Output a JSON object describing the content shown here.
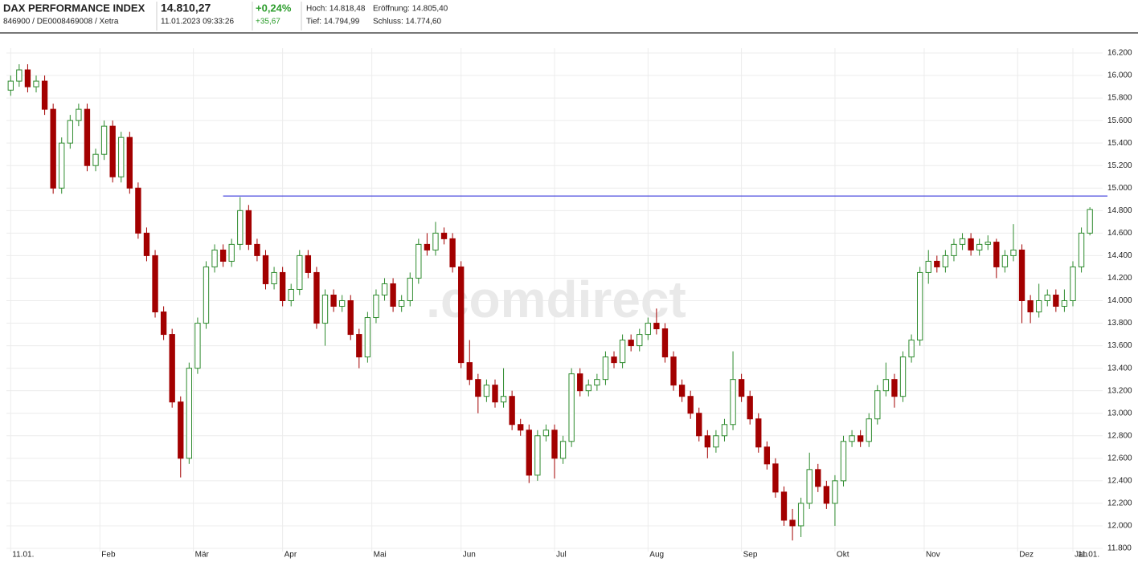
{
  "header": {
    "title": "DAX PERFORMANCE INDEX",
    "ids": "846900 / DE0008469008 / Xetra",
    "price": "14.810,27",
    "timestamp": "11.01.2023 09:33:26",
    "change_pct": "+0,24%",
    "change_abs": "+35,67",
    "high": "Hoch: 14.818,48",
    "open": "Eröffnung: 14.805,40",
    "low": "Tief: 14.794,99",
    "close": "Schluss: 14.774,60"
  },
  "chart_data": {
    "type": "candlestick",
    "watermark": ".comdirect",
    "up_color": "#2e8b2e",
    "down_color": "#a30000",
    "grid": true,
    "open": [
      15870,
      15950,
      16050,
      15900,
      15950,
      15700,
      15000,
      15400,
      15600,
      15700,
      15200,
      15300,
      15550,
      15100,
      15450,
      15000,
      14600,
      14400,
      13900,
      13700,
      13100,
      12600,
      13400,
      13800,
      14300,
      14450,
      14350,
      14500,
      14800,
      14500,
      14400,
      14150,
      14250,
      14000,
      14100,
      14400,
      14250,
      13800,
      14050,
      13950,
      14000,
      13700,
      13500,
      13850,
      14050,
      14150,
      13950,
      14000,
      14200,
      14500,
      14450,
      14600,
      14550,
      14300,
      13450,
      13300,
      13150,
      13250,
      13100,
      13150,
      12900,
      12850,
      12450,
      12800,
      12850,
      12600,
      12750,
      13350,
      13200,
      13250,
      13300,
      13500,
      13450,
      13650,
      13600,
      13700,
      13800,
      13750,
      13500,
      13250,
      13150,
      13000,
      12800,
      12700,
      12800,
      12900,
      13300,
      13150,
      12950,
      12700,
      12550,
      12300,
      12050,
      12000,
      12200,
      12500,
      12350,
      12200,
      12400,
      12750,
      12800,
      12750,
      12950,
      13200,
      13300,
      13150,
      13500,
      13650,
      14250,
      14350,
      14300,
      14400,
      14500,
      14550,
      14450,
      14500,
      14520,
      14300,
      14400,
      14450,
      14000,
      13900,
      14000,
      14050,
      13950,
      14000,
      14300,
      14600
    ],
    "high": [
      16000,
      16100,
      16100,
      16000,
      16000,
      15750,
      15450,
      15650,
      15750,
      15750,
      15350,
      15600,
      15600,
      15500,
      15500,
      15050,
      14650,
      14450,
      13950,
      13750,
      13150,
      13450,
      13850,
      14350,
      14500,
      14500,
      14550,
      14920,
      14850,
      14550,
      14450,
      14300,
      14300,
      14150,
      14450,
      14450,
      14300,
      14100,
      14100,
      14050,
      14050,
      13750,
      13900,
      14100,
      14200,
      14200,
      14050,
      14250,
      14550,
      14600,
      14700,
      14650,
      14600,
      14350,
      13650,
      13350,
      13300,
      13300,
      13400,
      13200,
      12950,
      12900,
      12850,
      12900,
      12900,
      12800,
      13400,
      13400,
      13300,
      13350,
      13550,
      13550,
      13700,
      13700,
      13750,
      13850,
      13930,
      13800,
      13550,
      13300,
      13200,
      13050,
      12850,
      12850,
      12950,
      13550,
      13350,
      13200,
      13000,
      12750,
      12600,
      12350,
      12150,
      12250,
      12650,
      12550,
      12400,
      12450,
      12800,
      12850,
      12850,
      13000,
      13250,
      13450,
      13350,
      13550,
      13700,
      14300,
      14450,
      14400,
      14450,
      14550,
      14600,
      14600,
      14550,
      14580,
      14550,
      14450,
      14680,
      14500,
      14050,
      14150,
      14100,
      14100,
      14100,
      14350,
      14650,
      14830
    ],
    "low": [
      15820,
      15900,
      15850,
      15850,
      15650,
      14950,
      14950,
      15350,
      15550,
      15150,
      15150,
      15250,
      15050,
      15050,
      14950,
      14550,
      14350,
      13850,
      13650,
      13050,
      12430,
      12550,
      13350,
      13750,
      14250,
      14300,
      14300,
      14450,
      14450,
      14350,
      14100,
      14100,
      13950,
      13950,
      14050,
      14200,
      13750,
      13600,
      13900,
      13900,
      13650,
      13400,
      13450,
      13800,
      14000,
      13900,
      13900,
      13950,
      14150,
      14400,
      14400,
      14500,
      14250,
      13400,
      13250,
      13000,
      13100,
      13050,
      13050,
      12850,
      12800,
      12380,
      12400,
      12750,
      12420,
      12550,
      12700,
      13150,
      13150,
      13200,
      13250,
      13400,
      13400,
      13550,
      13550,
      13650,
      13700,
      13450,
      13200,
      13100,
      12950,
      12750,
      12600,
      12650,
      12750,
      12850,
      13100,
      12900,
      12650,
      12500,
      12250,
      12000,
      11870,
      11900,
      12150,
      12300,
      12150,
      12000,
      12350,
      12700,
      12700,
      12700,
      12900,
      13150,
      13050,
      13100,
      13450,
      13600,
      14150,
      14250,
      14250,
      14350,
      14450,
      14400,
      14400,
      14450,
      14200,
      14250,
      14350,
      13800,
      13800,
      13850,
      13950,
      13900,
      13900,
      13950,
      14250,
      14580
    ],
    "close": [
      15950,
      16050,
      15900,
      15950,
      15700,
      15000,
      15400,
      15600,
      15700,
      15200,
      15300,
      15550,
      15100,
      15450,
      15000,
      14600,
      14400,
      13900,
      13700,
      13100,
      12600,
      13400,
      13800,
      14300,
      14450,
      14350,
      14500,
      14800,
      14500,
      14400,
      14150,
      14250,
      14000,
      14100,
      14400,
      14250,
      13800,
      14050,
      13950,
      14000,
      13700,
      13500,
      13850,
      14050,
      14150,
      13950,
      14000,
      14200,
      14500,
      14450,
      14600,
      14550,
      14300,
      13450,
      13300,
      13150,
      13250,
      13100,
      13150,
      12900,
      12850,
      12450,
      12800,
      12850,
      12600,
      12750,
      13350,
      13200,
      13250,
      13300,
      13500,
      13450,
      13650,
      13600,
      13700,
      13800,
      13750,
      13500,
      13250,
      13150,
      13000,
      12800,
      12700,
      12800,
      12900,
      13300,
      13150,
      12950,
      12700,
      12550,
      12300,
      12050,
      12000,
      12200,
      12500,
      12350,
      12200,
      12400,
      12750,
      12800,
      12750,
      12950,
      13200,
      13300,
      13150,
      13500,
      13650,
      14250,
      14350,
      14300,
      14400,
      14500,
      14550,
      14450,
      14500,
      14520,
      14300,
      14400,
      14450,
      14000,
      13900,
      14000,
      14050,
      13950,
      14000,
      14300,
      14600,
      14810
    ],
    "hline": {
      "value": 14930,
      "start": 25,
      "color": "#1f1fd6"
    },
    "xlim": [
      -0.5,
      128.5
    ],
    "xticks": [
      {
        "value": 0,
        "label": "11.01."
      },
      {
        "value": 10.5,
        "label": "Feb"
      },
      {
        "value": 21.5,
        "label": "Mär"
      },
      {
        "value": 32,
        "label": "Apr"
      },
      {
        "value": 42.5,
        "label": "Mai"
      },
      {
        "value": 53,
        "label": "Jun"
      },
      {
        "value": 64,
        "label": "Jul"
      },
      {
        "value": 75,
        "label": "Aug"
      },
      {
        "value": 86,
        "label": "Sep"
      },
      {
        "value": 97,
        "label": "Okt"
      },
      {
        "value": 107.5,
        "label": "Nov"
      },
      {
        "value": 118.5,
        "label": "Dez"
      },
      {
        "value": 125,
        "label": "Jan"
      },
      {
        "value": 127,
        "label": "11.01."
      }
    ],
    "ylim": [
      11800,
      16200
    ],
    "yticks": [
      {
        "value": 11800,
        "label": "11.800"
      },
      {
        "value": 12000,
        "label": "12.000"
      },
      {
        "value": 12200,
        "label": "12.200"
      },
      {
        "value": 12400,
        "label": "12.400"
      },
      {
        "value": 12600,
        "label": "12.600"
      },
      {
        "value": 12800,
        "label": "12.800"
      },
      {
        "value": 13000,
        "label": "13.000"
      },
      {
        "value": 13200,
        "label": "13.200"
      },
      {
        "value": 13400,
        "label": "13.400"
      },
      {
        "value": 13600,
        "label": "13.600"
      },
      {
        "value": 13800,
        "label": "13.800"
      },
      {
        "value": 14000,
        "label": "14.000"
      },
      {
        "value": 14200,
        "label": "14.200"
      },
      {
        "value": 14400,
        "label": "14.400"
      },
      {
        "value": 14600,
        "label": "14.600"
      },
      {
        "value": 14800,
        "label": "14.800"
      },
      {
        "value": 15000,
        "label": "15.000"
      },
      {
        "value": 15200,
        "label": "15.200"
      },
      {
        "value": 15400,
        "label": "15.400"
      },
      {
        "value": 15600,
        "label": "15.600"
      },
      {
        "value": 15800,
        "label": "15.800"
      },
      {
        "value": 16000,
        "label": "16.000"
      },
      {
        "value": 16200,
        "label": "16.200"
      }
    ]
  }
}
